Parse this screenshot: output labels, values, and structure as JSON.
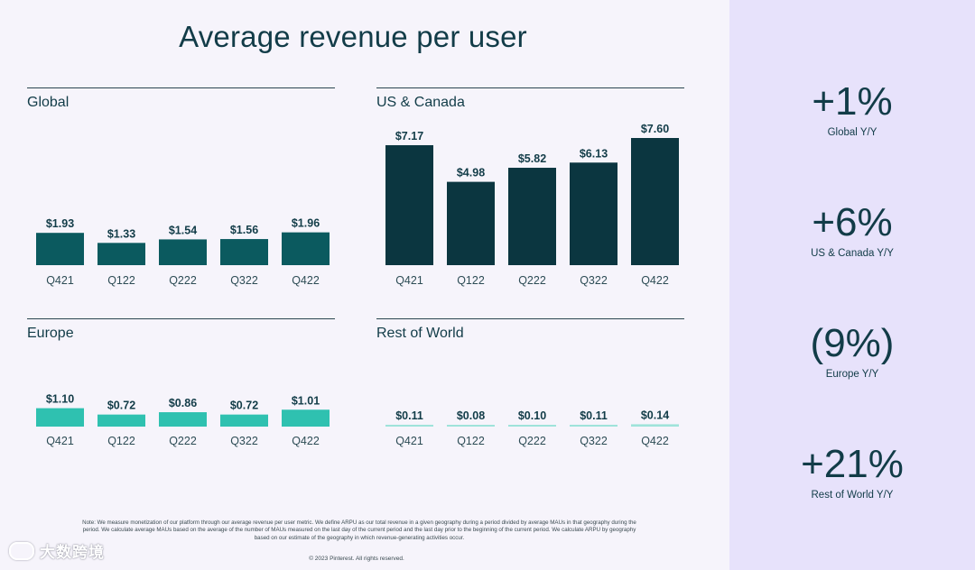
{
  "title": "Average revenue per user",
  "chart_data": [
    {
      "type": "bar",
      "title": "Global",
      "categories": [
        "Q421",
        "Q122",
        "Q222",
        "Q322",
        "Q422"
      ],
      "values": [
        1.93,
        1.33,
        1.54,
        1.56,
        1.96
      ],
      "labels": [
        "$1.93",
        "$1.33",
        "$1.54",
        "$1.56",
        "$1.96"
      ],
      "ylim": [
        0,
        7.6
      ],
      "color": "#0b5a5f"
    },
    {
      "type": "bar",
      "title": "US & Canada",
      "categories": [
        "Q421",
        "Q122",
        "Q222",
        "Q322",
        "Q422"
      ],
      "values": [
        7.17,
        4.98,
        5.82,
        6.13,
        7.6
      ],
      "labels": [
        "$7.17",
        "$4.98",
        "$5.82",
        "$6.13",
        "$7.60"
      ],
      "ylim": [
        0,
        7.6
      ],
      "color": "#0b3640"
    },
    {
      "type": "bar",
      "title": "Europe",
      "categories": [
        "Q421",
        "Q122",
        "Q222",
        "Q322",
        "Q422"
      ],
      "values": [
        1.1,
        0.72,
        0.86,
        0.72,
        1.01
      ],
      "labels": [
        "$1.10",
        "$0.72",
        "$0.86",
        "$0.72",
        "$1.01"
      ],
      "ylim": [
        0,
        7.6
      ],
      "color": "#2fc1b0"
    },
    {
      "type": "bar",
      "title": "Rest of World",
      "categories": [
        "Q421",
        "Q122",
        "Q222",
        "Q322",
        "Q422"
      ],
      "values": [
        0.11,
        0.08,
        0.1,
        0.11,
        0.14
      ],
      "labels": [
        "$0.11",
        "$0.08",
        "$0.10",
        "$0.11",
        "$0.14"
      ],
      "ylim": [
        0,
        7.6
      ],
      "color": "#9fe3da"
    }
  ],
  "stats": [
    {
      "value": "+1%",
      "label": "Global Y/Y"
    },
    {
      "value": "+6%",
      "label": "US & Canada Y/Y"
    },
    {
      "value": "(9%)",
      "label": "Europe Y/Y"
    },
    {
      "value": "+21%",
      "label": "Rest of World Y/Y"
    }
  ],
  "note": "Note: We measure monetization of our platform through our average revenue per user metric. We define ARPU as our total revenue in a given geography during a period divided by average MAUs in that geography during the period. We calculate average MAUs based on the average of the number of MAUs measured on the last day of the current period and the last day prior to the beginning of the current period. We calculate ARPU by geography based on our estimate of the geography in which revenue-generating activities occur.",
  "copyright": "© 2023 Pinterest. All rights reserved.",
  "watermark": "大数跨境"
}
